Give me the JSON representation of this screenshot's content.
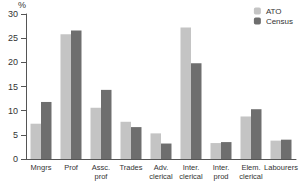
{
  "chart_data": {
    "type": "bar",
    "ylabel": "%",
    "categories": [
      "Mngrs",
      "Prof",
      "Assc. prof",
      "Trades",
      "Adv. clerical",
      "Inter. clerical",
      "Inter. prod",
      "Elem. clerical",
      "Labourers"
    ],
    "series": [
      {
        "name": "ATO",
        "color": "#c4c4c4",
        "values": [
          7.3,
          25.8,
          10.6,
          7.7,
          5.3,
          27.2,
          3.3,
          8.8,
          3.8
        ]
      },
      {
        "name": "Census",
        "color": "#6e6e6e",
        "values": [
          11.8,
          26.6,
          14.3,
          6.6,
          3.2,
          19.8,
          3.5,
          10.3,
          4.0
        ]
      }
    ],
    "ylim": [
      0,
      30
    ],
    "yticks": [
      0,
      5,
      10,
      15,
      20,
      25,
      30
    ],
    "grid": false,
    "legend": "top-right"
  }
}
